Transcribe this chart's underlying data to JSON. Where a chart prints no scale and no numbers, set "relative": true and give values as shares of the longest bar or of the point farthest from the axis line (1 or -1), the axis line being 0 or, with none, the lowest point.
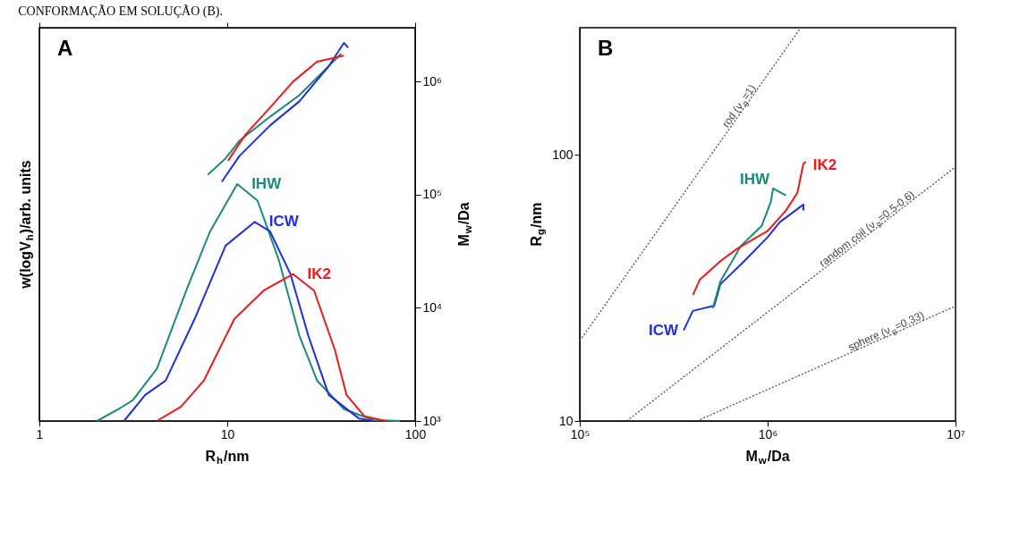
{
  "chart_data": [
    {
      "type": "line",
      "title": "A",
      "annotations": [
        "CONFORMAÇÃO EM SOLUÇÃO (B)."
      ],
      "xlabel": "R$_{h}$/nm",
      "ylabel": "w(logV$_{h}$)/arb. units",
      "relative": true,
      "log": "x",
      "xlim": [
        1,
        100
      ],
      "xticks": [
        1,
        10,
        100
      ],
      "marker": "none",
      "grid": false,
      "series": [
        {
          "name": "IHW",
          "color": "#1a8a7a",
          "x": [
            2.03,
            2.64,
            3.14,
            4.22,
            6.05,
            8.1,
            11.3,
            14.5,
            18.8,
            24.2,
            30.1,
            41.8,
            59.7,
            83
          ],
          "values": [
            0,
            0.05,
            0.087,
            0.22,
            0.55,
            0.8,
            1,
            0.93,
            0.68,
            0.36,
            0.17,
            0.05,
            0.004,
            0
          ]
        },
        {
          "name": "ICW",
          "color": "#1f2fe0",
          "x": [
            2.82,
            3.66,
            4.7,
            6.7,
            9.8,
            14.0,
            16.9,
            21.7,
            27.0,
            34.7,
            50.3,
            59.7
          ],
          "values": [
            0,
            0.11,
            0.17,
            0.43,
            0.74,
            0.84,
            0.8,
            0.62,
            0.36,
            0.11,
            0.01,
            0
          ]
        },
        {
          "name": "IK2",
          "color": "#f01818",
          "x": [
            4.22,
            5.67,
            7.5,
            10.9,
            15.6,
            22.4,
            29.0,
            37.4,
            43.1,
            53.7,
            69.7
          ],
          "values": [
            0,
            0.06,
            0.17,
            0.43,
            0.55,
            0.62,
            0.55,
            0.3,
            0.11,
            0.02,
            0
          ]
        }
      ]
    },
    {
      "type": "line",
      "ylabel": "M$_{w}$/Da",
      "log": "xy",
      "xlim": [
        1,
        100
      ],
      "xticks": [
        1,
        10,
        100
      ],
      "tick_labels": "y",
      "ylim": [
        1000,
        3000000
      ],
      "yticks": [
        {
          "value": 1000,
          "label": "10³"
        },
        {
          "value": 10000,
          "label": "10⁴"
        },
        {
          "value": 100000,
          "label": "10⁵"
        },
        {
          "value": 1000000,
          "label": "10⁶"
        }
      ],
      "marker": "none",
      "grid": false,
      "series": [
        {
          "color": "#1a8a7a",
          "x": [
            7.87,
            9.8,
            11.6,
            16.9,
            24.2,
            34.7,
            40.4
          ],
          "values": [
            150000,
            210000,
            300000,
            490000,
            760000,
            1370000,
            1770000
          ]
        },
        {
          "color": "#1f2fe0",
          "x": [
            9.35,
            11.6,
            16.9,
            24.2,
            34.7,
            41.8,
            44
          ],
          "values": [
            130000,
            220000,
            410000,
            670000,
            1370000,
            2200000,
            2000000
          ]
        },
        {
          "color": "#f01818",
          "x": [
            10.1,
            12.5,
            16.9,
            22.4,
            30.1,
            41.8
          ],
          "values": [
            200000,
            340000,
            590000,
            1000000,
            1500000,
            1700000
          ]
        }
      ]
    },
    {
      "type": "line",
      "title": "B",
      "xlabel": "M$_{w}$/Da",
      "ylabel": "R$_{g}$/nm",
      "log": "xy",
      "xlim": [
        100000,
        10000000
      ],
      "xticks": [
        {
          "value": 100000,
          "label": "10⁵"
        },
        {
          "value": 1000000,
          "label": "10⁶"
        },
        {
          "value": 10000000,
          "label": "10⁷"
        }
      ],
      "ylim": [
        10,
        300
      ],
      "yticks": [
        10,
        100
      ],
      "marker": "none",
      "grid": false,
      "series": [
        {
          "name": "rod (ν$_{g}$=1)",
          "color": "#444444",
          "line_style": "dotted",
          "x": [
            100000,
            1500000
          ],
          "values": [
            20,
            300
          ]
        },
        {
          "name": "random coil (ν$_{g}$=0.5-0.6)",
          "color": "#444444",
          "line_style": "dotted",
          "x": [
            178000,
            10000000
          ],
          "values": [
            10,
            90
          ]
        },
        {
          "name": "sphere (ν$_{g}$=0.33)",
          "color": "#444444",
          "line_style": "dotted",
          "x": [
            420000,
            10000000
          ],
          "values": [
            10,
            27
          ]
        },
        {
          "name": "ICW",
          "color": "#1f2fe0",
          "x": [
            357000,
            400000,
            520000,
            560000,
            750000,
            1000000,
            1160000,
            1550000,
            1550000
          ],
          "values": [
            21.9,
            25.9,
            27.1,
            32.6,
            39.8,
            49,
            55.8,
            65,
            61.7
          ]
        },
        {
          "name": "IHW",
          "color": "#1a8a7a",
          "x": [
            510000,
            560000,
            720000,
            930000,
            1040000,
            1070000,
            1250000
          ],
          "values": [
            26.5,
            33.4,
            45.4,
            54.1,
            66.6,
            74.7,
            70.3
          ]
        },
        {
          "name": "IK2",
          "color": "#f01818",
          "x": [
            400000,
            435000,
            560000,
            690000,
            1000000,
            1250000,
            1440000,
            1550000,
            1600000
          ],
          "values": [
            29.7,
            33.9,
            39.8,
            44.4,
            51.7,
            61.7,
            71.9,
            92.6,
            94
          ]
        }
      ]
    }
  ]
}
